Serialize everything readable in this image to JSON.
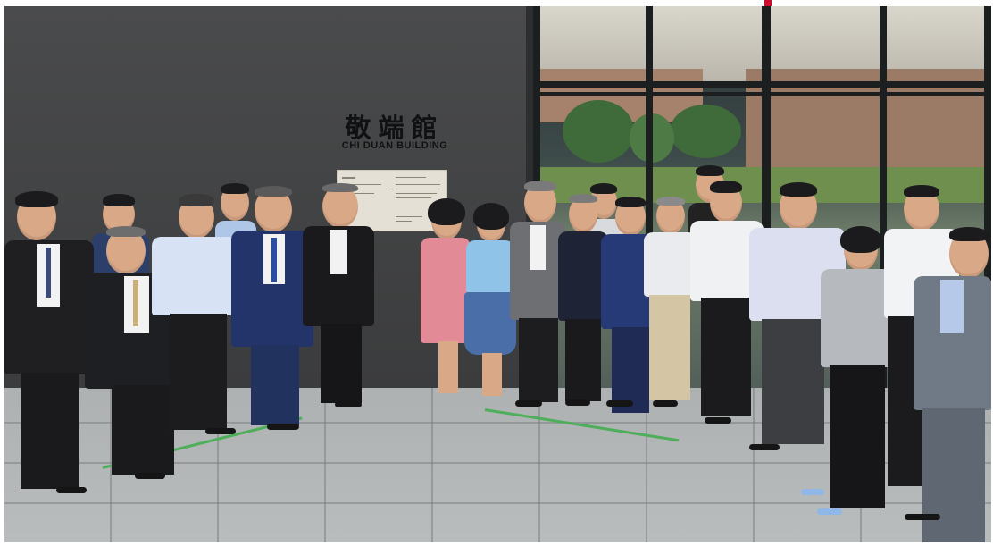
{
  "signage": {
    "building_name_cn": "敬端館",
    "building_name_en": "CHI DUAN BUILDING"
  },
  "colors": {
    "wall": "#434445",
    "floor": "#b4b7b8",
    "floor_tape": "#4fae5a",
    "accent_mark": "#c8102e"
  }
}
